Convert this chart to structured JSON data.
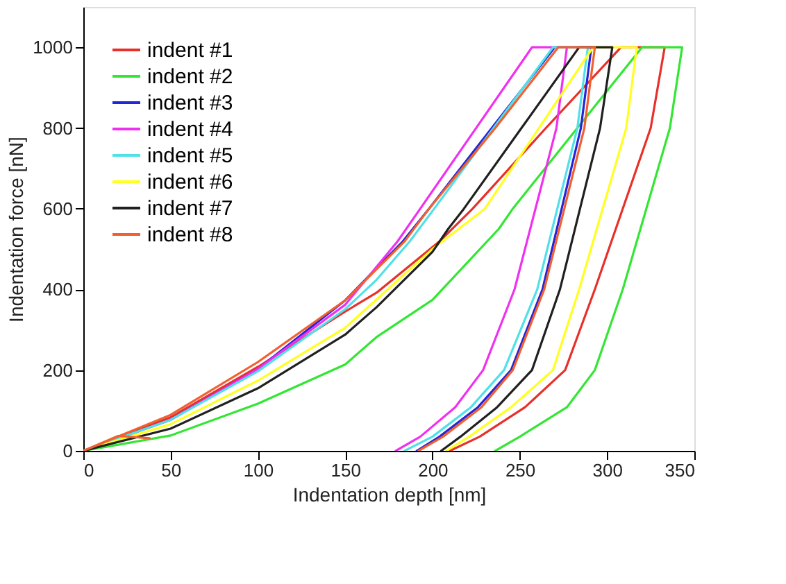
{
  "chart_data": {
    "type": "line",
    "xlabel": "Indentation depth [nm]",
    "ylabel": "Indentation force [nN]",
    "xlim": [
      0,
      350
    ],
    "ylim": [
      0,
      1100
    ],
    "xticks": [
      0,
      50,
      100,
      150,
      200,
      250,
      300,
      350
    ],
    "yticks": [
      0,
      200,
      400,
      600,
      800,
      1000
    ],
    "grid": false,
    "legend": "top left",
    "marker": "none",
    "line_style": "solid",
    "series": [
      {
        "name": "indent #1",
        "color": "#e8302a",
        "x": [
          0,
          50,
          100,
          150,
          168,
          204,
          223,
          265,
          308,
          333,
          325,
          293,
          276,
          253,
          227,
          210
        ],
        "values": [
          0,
          83,
          208,
          345,
          392,
          519,
          600,
          800,
          1000,
          1000,
          800,
          400,
          200,
          108,
          35,
          0
        ]
      },
      {
        "name": "indent #2",
        "color": "#33e633",
        "x": [
          0,
          50,
          100,
          150,
          168,
          200,
          238,
          246,
          283,
          320,
          343,
          336,
          309,
          293,
          277,
          250,
          236
        ],
        "values": [
          0,
          38,
          117,
          214,
          282,
          374,
          550,
          600,
          800,
          1000,
          1000,
          800,
          400,
          200,
          108,
          35,
          0
        ]
      },
      {
        "name": "indent #3",
        "color": "#2424d8",
        "x": [
          0,
          50,
          100,
          150,
          183,
          198,
          234,
          270,
          291,
          285,
          263,
          245,
          226,
          204,
          191
        ],
        "values": [
          0,
          77,
          203,
          373,
          519,
          600,
          800,
          1000,
          1000,
          800,
          400,
          200,
          108,
          35,
          0
        ]
      },
      {
        "name": "indent #4",
        "color": "#f030f0",
        "x": [
          0,
          50,
          100,
          150,
          180,
          193,
          225,
          257,
          277,
          271,
          247,
          229,
          213,
          193,
          179
        ],
        "values": [
          0,
          77,
          203,
          362,
          519,
          600,
          800,
          1000,
          1000,
          800,
          400,
          200,
          108,
          35,
          0
        ]
      },
      {
        "name": "indent #5",
        "color": "#50e0e8",
        "x": [
          0,
          50,
          100,
          150,
          168,
          187,
          201,
          235,
          269,
          289,
          283,
          260,
          241,
          222,
          200,
          184
        ],
        "values": [
          0,
          77,
          197,
          351,
          424,
          519,
          600,
          800,
          1000,
          1000,
          800,
          400,
          200,
          108,
          35,
          0
        ]
      },
      {
        "name": "indent #6",
        "color": "#ffff20",
        "x": [
          0,
          50,
          100,
          150,
          200,
          230,
          261,
          292,
          317,
          311,
          284,
          269,
          245,
          221,
          208
        ],
        "values": [
          0,
          66,
          174,
          305,
          500,
          600,
          800,
          1000,
          1000,
          800,
          400,
          200,
          108,
          35,
          0
        ]
      },
      {
        "name": "indent #7",
        "color": "#202020",
        "x": [
          0,
          50,
          100,
          150,
          168,
          200,
          209,
          218,
          251,
          284,
          303,
          296,
          273,
          257,
          237,
          216,
          205
        ],
        "values": [
          0,
          55,
          155,
          288,
          356,
          493,
          550,
          600,
          800,
          1000,
          1000,
          800,
          400,
          200,
          108,
          35,
          0
        ]
      },
      {
        "name": "indent #8",
        "color": "#f06030",
        "x": [
          38,
          20,
          0,
          50,
          100,
          150,
          184,
          198,
          236,
          272,
          293,
          287,
          264,
          246,
          228,
          206,
          192
        ],
        "values": [
          31,
          37,
          0,
          89,
          220,
          373,
          519,
          600,
          800,
          1000,
          1000,
          800,
          400,
          200,
          108,
          35,
          0
        ]
      }
    ]
  }
}
